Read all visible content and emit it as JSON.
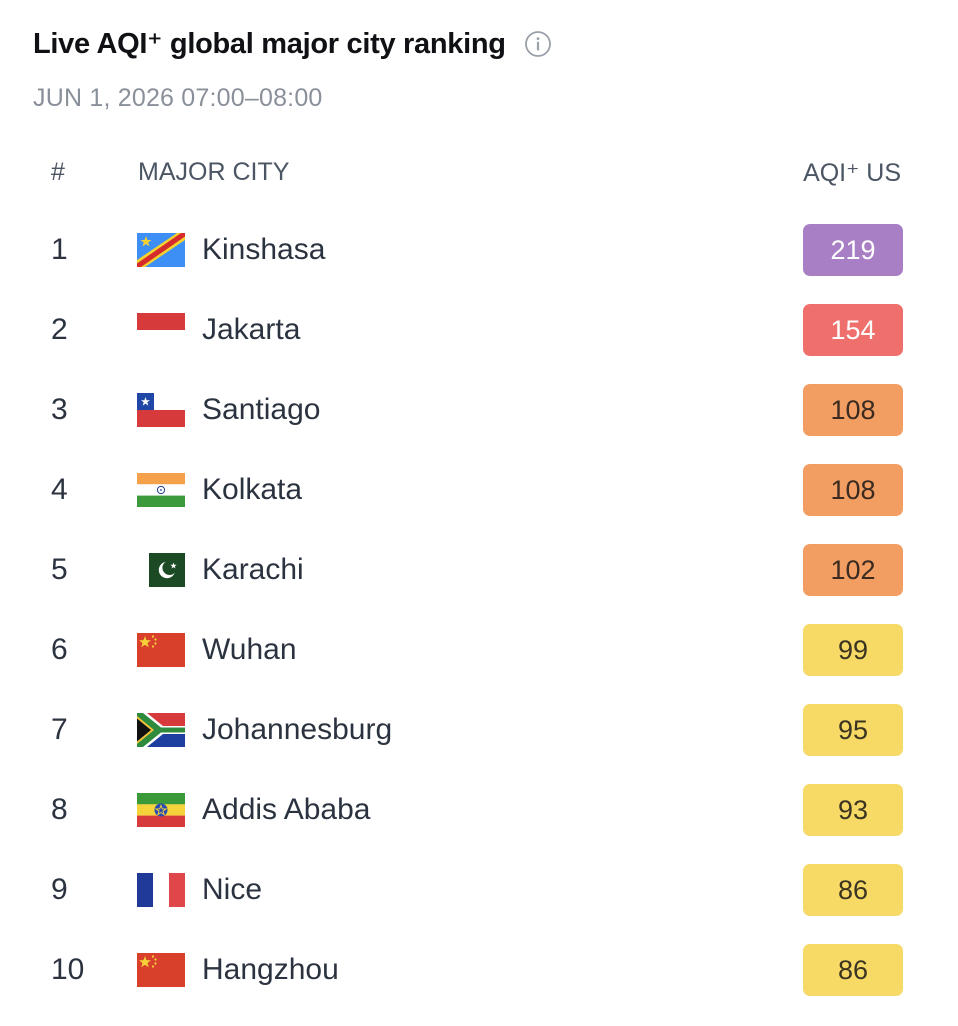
{
  "header": {
    "title": "Live AQI⁺ global major city ranking",
    "subtitle": "JUN 1, 2026 07:00–08:00"
  },
  "table": {
    "columns": {
      "rank": "#",
      "city": "MAJOR CITY",
      "aqi": "AQI⁺ US"
    },
    "rows": [
      {
        "rank": "1",
        "city": "Kinshasa",
        "aqi": "219",
        "flag": "drc-flag-icon",
        "badge_bg": "#a87fc4",
        "badge_fg": "#ffffff"
      },
      {
        "rank": "2",
        "city": "Jakarta",
        "aqi": "154",
        "flag": "indonesia-flag-icon",
        "badge_bg": "#ee6f6b",
        "badge_fg": "#ffffff"
      },
      {
        "rank": "3",
        "city": "Santiago",
        "aqi": "108",
        "flag": "chile-flag-icon",
        "badge_bg": "#f29e62",
        "badge_fg": "#3a2a20"
      },
      {
        "rank": "4",
        "city": "Kolkata",
        "aqi": "108",
        "flag": "india-flag-icon",
        "badge_bg": "#f29e62",
        "badge_fg": "#3a2a20"
      },
      {
        "rank": "5",
        "city": "Karachi",
        "aqi": "102",
        "flag": "pakistan-flag-icon",
        "badge_bg": "#f29e62",
        "badge_fg": "#3a2a20"
      },
      {
        "rank": "6",
        "city": "Wuhan",
        "aqi": "99",
        "flag": "china-flag-icon",
        "badge_bg": "#f7d966",
        "badge_fg": "#3a3420"
      },
      {
        "rank": "7",
        "city": "Johannesburg",
        "aqi": "95",
        "flag": "south-africa-flag-icon",
        "badge_bg": "#f7d966",
        "badge_fg": "#3a3420"
      },
      {
        "rank": "8",
        "city": "Addis Ababa",
        "aqi": "93",
        "flag": "ethiopia-flag-icon",
        "badge_bg": "#f7d966",
        "badge_fg": "#3a3420"
      },
      {
        "rank": "9",
        "city": "Nice",
        "aqi": "86",
        "flag": "france-flag-icon",
        "badge_bg": "#f7d966",
        "badge_fg": "#3a3420"
      },
      {
        "rank": "10",
        "city": "Hangzhou",
        "aqi": "86",
        "flag": "china-flag-icon",
        "badge_bg": "#f7d966",
        "badge_fg": "#3a3420"
      }
    ]
  }
}
